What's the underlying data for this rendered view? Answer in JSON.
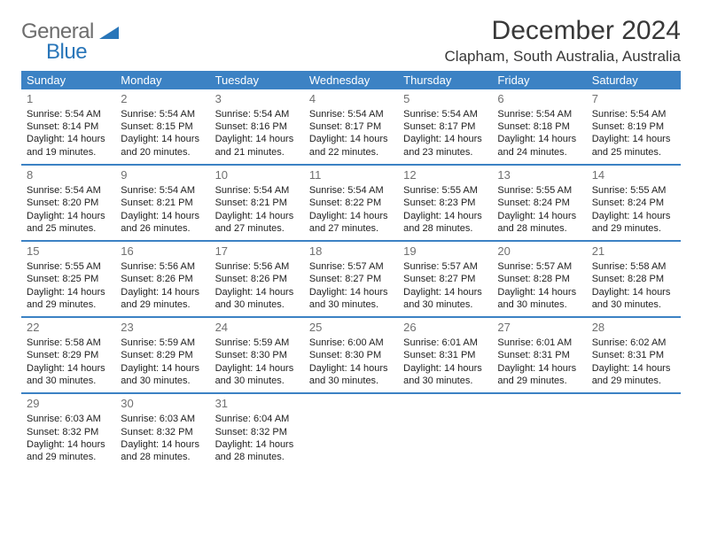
{
  "logo": {
    "general": "General",
    "blue": "Blue"
  },
  "title": "December 2024",
  "location": "Clapham, South Australia, Australia",
  "colors": {
    "header_bg": "#3c82c4",
    "header_text": "#ffffff",
    "row_border": "#3c82c4",
    "daynum": "#707070",
    "body_text": "#222222",
    "title_text": "#383838",
    "logo_grey": "#6d6d6d",
    "logo_blue": "#2976b9",
    "background": "#ffffff"
  },
  "weekdays": [
    "Sunday",
    "Monday",
    "Tuesday",
    "Wednesday",
    "Thursday",
    "Friday",
    "Saturday"
  ],
  "days": [
    {
      "n": 1,
      "sr": "5:54 AM",
      "ss": "8:14 PM",
      "dl": "14 hours and 19 minutes."
    },
    {
      "n": 2,
      "sr": "5:54 AM",
      "ss": "8:15 PM",
      "dl": "14 hours and 20 minutes."
    },
    {
      "n": 3,
      "sr": "5:54 AM",
      "ss": "8:16 PM",
      "dl": "14 hours and 21 minutes."
    },
    {
      "n": 4,
      "sr": "5:54 AM",
      "ss": "8:17 PM",
      "dl": "14 hours and 22 minutes."
    },
    {
      "n": 5,
      "sr": "5:54 AM",
      "ss": "8:17 PM",
      "dl": "14 hours and 23 minutes."
    },
    {
      "n": 6,
      "sr": "5:54 AM",
      "ss": "8:18 PM",
      "dl": "14 hours and 24 minutes."
    },
    {
      "n": 7,
      "sr": "5:54 AM",
      "ss": "8:19 PM",
      "dl": "14 hours and 25 minutes."
    },
    {
      "n": 8,
      "sr": "5:54 AM",
      "ss": "8:20 PM",
      "dl": "14 hours and 25 minutes."
    },
    {
      "n": 9,
      "sr": "5:54 AM",
      "ss": "8:21 PM",
      "dl": "14 hours and 26 minutes."
    },
    {
      "n": 10,
      "sr": "5:54 AM",
      "ss": "8:21 PM",
      "dl": "14 hours and 27 minutes."
    },
    {
      "n": 11,
      "sr": "5:54 AM",
      "ss": "8:22 PM",
      "dl": "14 hours and 27 minutes."
    },
    {
      "n": 12,
      "sr": "5:55 AM",
      "ss": "8:23 PM",
      "dl": "14 hours and 28 minutes."
    },
    {
      "n": 13,
      "sr": "5:55 AM",
      "ss": "8:24 PM",
      "dl": "14 hours and 28 minutes."
    },
    {
      "n": 14,
      "sr": "5:55 AM",
      "ss": "8:24 PM",
      "dl": "14 hours and 29 minutes."
    },
    {
      "n": 15,
      "sr": "5:55 AM",
      "ss": "8:25 PM",
      "dl": "14 hours and 29 minutes."
    },
    {
      "n": 16,
      "sr": "5:56 AM",
      "ss": "8:26 PM",
      "dl": "14 hours and 29 minutes."
    },
    {
      "n": 17,
      "sr": "5:56 AM",
      "ss": "8:26 PM",
      "dl": "14 hours and 30 minutes."
    },
    {
      "n": 18,
      "sr": "5:57 AM",
      "ss": "8:27 PM",
      "dl": "14 hours and 30 minutes."
    },
    {
      "n": 19,
      "sr": "5:57 AM",
      "ss": "8:27 PM",
      "dl": "14 hours and 30 minutes."
    },
    {
      "n": 20,
      "sr": "5:57 AM",
      "ss": "8:28 PM",
      "dl": "14 hours and 30 minutes."
    },
    {
      "n": 21,
      "sr": "5:58 AM",
      "ss": "8:28 PM",
      "dl": "14 hours and 30 minutes."
    },
    {
      "n": 22,
      "sr": "5:58 AM",
      "ss": "8:29 PM",
      "dl": "14 hours and 30 minutes."
    },
    {
      "n": 23,
      "sr": "5:59 AM",
      "ss": "8:29 PM",
      "dl": "14 hours and 30 minutes."
    },
    {
      "n": 24,
      "sr": "5:59 AM",
      "ss": "8:30 PM",
      "dl": "14 hours and 30 minutes."
    },
    {
      "n": 25,
      "sr": "6:00 AM",
      "ss": "8:30 PM",
      "dl": "14 hours and 30 minutes."
    },
    {
      "n": 26,
      "sr": "6:01 AM",
      "ss": "8:31 PM",
      "dl": "14 hours and 30 minutes."
    },
    {
      "n": 27,
      "sr": "6:01 AM",
      "ss": "8:31 PM",
      "dl": "14 hours and 29 minutes."
    },
    {
      "n": 28,
      "sr": "6:02 AM",
      "ss": "8:31 PM",
      "dl": "14 hours and 29 minutes."
    },
    {
      "n": 29,
      "sr": "6:03 AM",
      "ss": "8:32 PM",
      "dl": "14 hours and 29 minutes."
    },
    {
      "n": 30,
      "sr": "6:03 AM",
      "ss": "8:32 PM",
      "dl": "14 hours and 28 minutes."
    },
    {
      "n": 31,
      "sr": "6:04 AM",
      "ss": "8:32 PM",
      "dl": "14 hours and 28 minutes."
    }
  ],
  "labels": {
    "sunrise": "Sunrise:",
    "sunset": "Sunset:",
    "daylight": "Daylight:"
  },
  "layout": {
    "first_weekday_index": 0,
    "rows": 5,
    "cols": 7
  }
}
